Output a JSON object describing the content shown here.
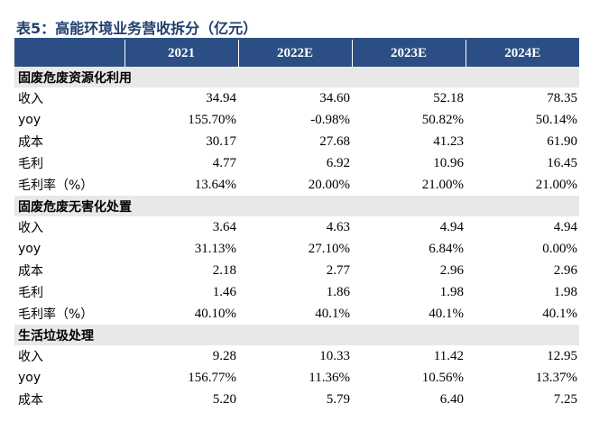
{
  "title": "表5：高能环境业务营收拆分（亿元）",
  "columns": [
    "",
    "2021",
    "2022E",
    "2023E",
    "2024E"
  ],
  "sections": [
    {
      "name": "固废危废资源化利用",
      "rows": [
        {
          "label": "收入",
          "values": [
            "34.94",
            "34.60",
            "52.18",
            "78.35"
          ]
        },
        {
          "label": "yoy",
          "values": [
            "155.70%",
            "-0.98%",
            "50.82%",
            "50.14%"
          ]
        },
        {
          "label": "成本",
          "values": [
            "30.17",
            "27.68",
            "41.23",
            "61.90"
          ]
        },
        {
          "label": "毛利",
          "values": [
            "4.77",
            "6.92",
            "10.96",
            "16.45"
          ]
        },
        {
          "label": "毛利率（%）",
          "values": [
            "13.64%",
            "20.00%",
            "21.00%",
            "21.00%"
          ]
        }
      ]
    },
    {
      "name": "固废危废无害化处置",
      "rows": [
        {
          "label": "收入",
          "values": [
            "3.64",
            "4.63",
            "4.94",
            "4.94"
          ]
        },
        {
          "label": "yoy",
          "values": [
            "31.13%",
            "27.10%",
            "6.84%",
            "0.00%"
          ]
        },
        {
          "label": "成本",
          "values": [
            "2.18",
            "2.77",
            "2.96",
            "2.96"
          ]
        },
        {
          "label": "毛利",
          "values": [
            "1.46",
            "1.86",
            "1.98",
            "1.98"
          ]
        },
        {
          "label": "毛利率（%）",
          "values": [
            "40.10%",
            "40.1%",
            "40.1%",
            "40.1%"
          ]
        }
      ]
    },
    {
      "name": "生活垃圾处理",
      "rows": [
        {
          "label": "收入",
          "values": [
            "9.28",
            "10.33",
            "11.42",
            "12.95"
          ]
        },
        {
          "label": "yoy",
          "values": [
            "156.77%",
            "11.36%",
            "10.56%",
            "13.37%"
          ]
        },
        {
          "label": "成本",
          "values": [
            "5.20",
            "5.79",
            "6.40",
            "7.25"
          ]
        }
      ]
    }
  ]
}
